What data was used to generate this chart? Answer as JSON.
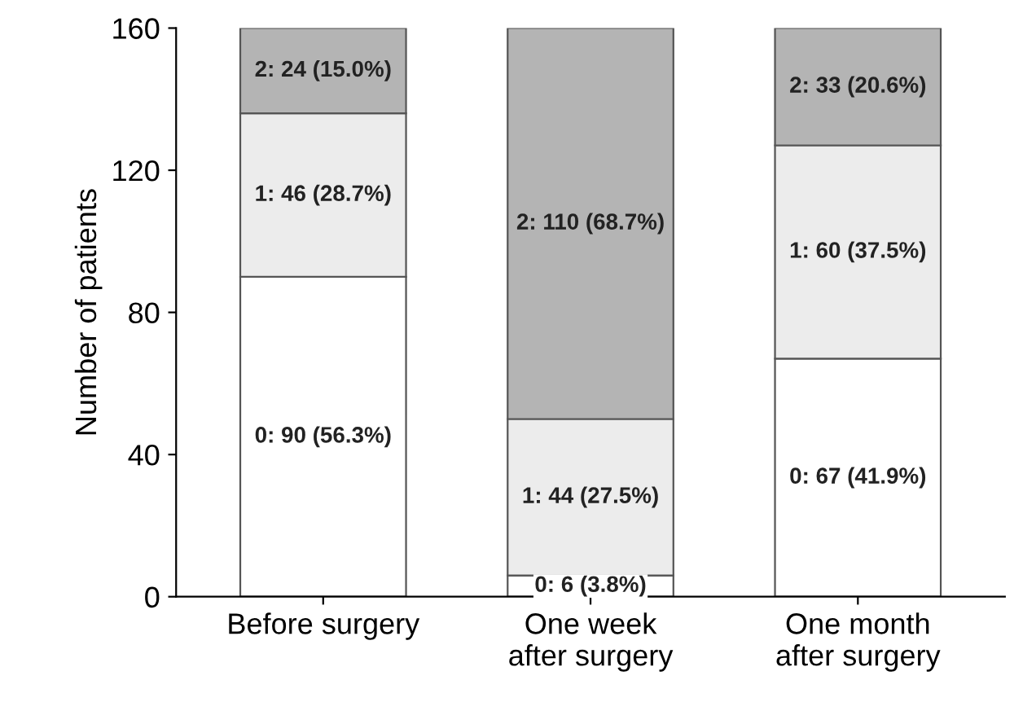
{
  "chart_data": {
    "type": "bar",
    "stacked": true,
    "ylabel": "Number of patients",
    "categories": [
      "Before surgery",
      "One week\nafter surgery",
      "One month\nafter surgery"
    ],
    "ylim": [
      0,
      160
    ],
    "yticks": [
      0,
      40,
      80,
      120,
      160
    ],
    "grid": false,
    "legend": false,
    "series": [
      {
        "color": "#ffffff",
        "values": [
          90,
          6,
          67
        ],
        "value_labels": [
          "0: 90 (56.3%)",
          "0: 6 (3.8%)",
          "0: 67 (41.9%)"
        ]
      },
      {
        "color": "#ececec",
        "values": [
          46,
          44,
          60
        ],
        "value_labels": [
          "1: 46 (28.7%)",
          "1: 44 (27.5%)",
          "1: 60 (37.5%)"
        ]
      },
      {
        "color": "#b4b4b4",
        "values": [
          24,
          110,
          33
        ],
        "value_labels": [
          "2: 24 (15.0%)",
          "2: 110 (68.7%)",
          "2: 33 (20.6%)"
        ]
      }
    ]
  }
}
